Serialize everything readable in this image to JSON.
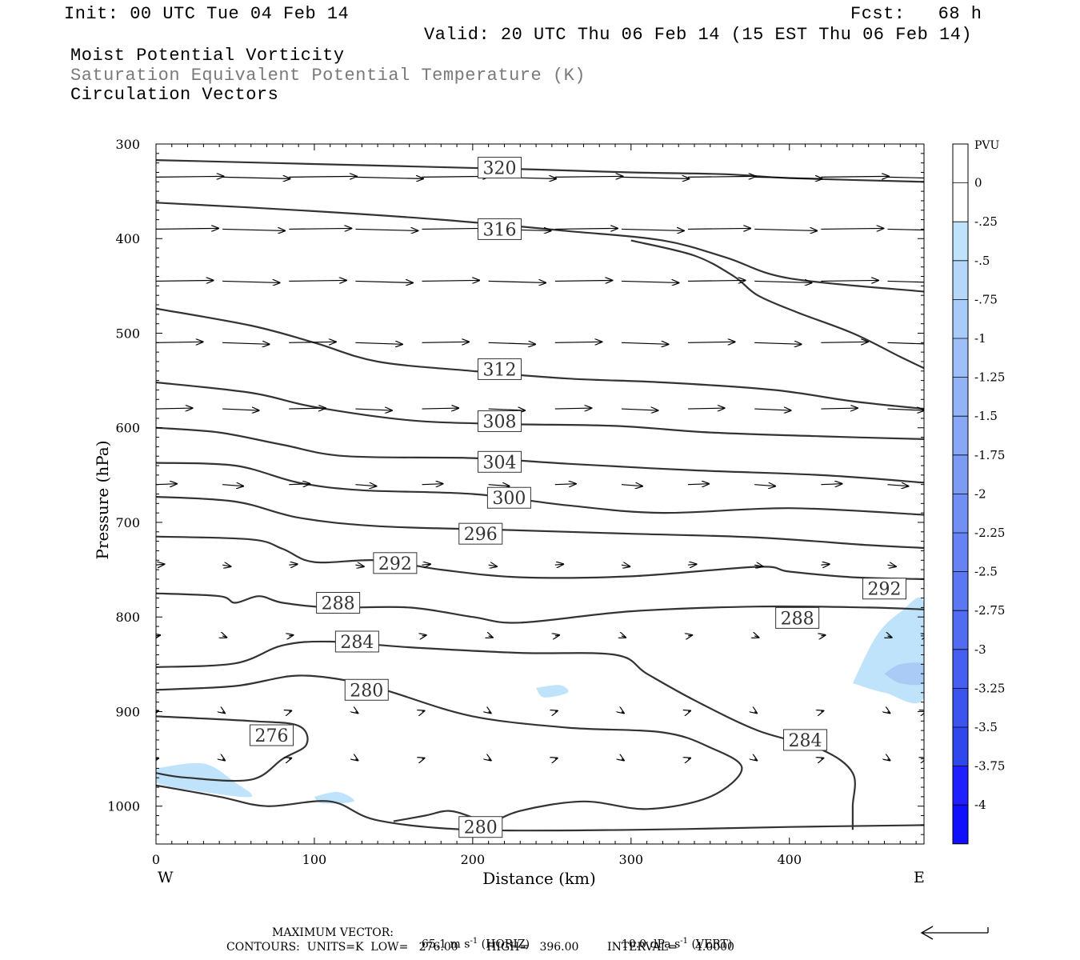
{
  "header": {
    "init": "Init: 00 UTC Tue 04 Feb 14",
    "fcst": "Fcst:   68 h",
    "valid": "Valid: 20 UTC Thu 06 Feb 14 (15 EST Thu 06 Feb 14)",
    "field1": "Moist Potential Vorticity",
    "field2": "Saturation Equivalent Potential Temperature (K)",
    "field3": "Circulation Vectors"
  },
  "colors": {
    "field2": "#7a7a7a",
    "contour": "#333333",
    "axis": "#000000"
  },
  "chart_data": {
    "type": "cross-section",
    "xlabel": "Distance (km)",
    "ylabel": "Pressure (hPa)",
    "xlim": [
      0,
      485
    ],
    "ylim": [
      1040,
      300
    ],
    "x_ticks": [
      0,
      100,
      200,
      300,
      400
    ],
    "y_ticks": [
      300,
      400,
      500,
      600,
      700,
      800,
      900,
      1000
    ],
    "x_end_labels": {
      "west": "W",
      "east": "E"
    },
    "contour_labels": [
      {
        "text": "320",
        "x": 217,
        "p": 325
      },
      {
        "text": "316",
        "x": 217,
        "p": 390
      },
      {
        "text": "312",
        "x": 217,
        "p": 538
      },
      {
        "text": "308",
        "x": 217,
        "p": 593
      },
      {
        "text": "304",
        "x": 217,
        "p": 636
      },
      {
        "text": "300",
        "x": 223,
        "p": 674
      },
      {
        "text": "296",
        "x": 205,
        "p": 712
      },
      {
        "text": "292",
        "x": 151,
        "p": 743
      },
      {
        "text": "292",
        "x": 460,
        "p": 770
      },
      {
        "text": "288",
        "x": 115,
        "p": 785
      },
      {
        "text": "288",
        "x": 405,
        "p": 801
      },
      {
        "text": "284",
        "x": 127,
        "p": 826
      },
      {
        "text": "284",
        "x": 410,
        "p": 930
      },
      {
        "text": "280",
        "x": 133,
        "p": 877
      },
      {
        "text": "280",
        "x": 205,
        "p": 1022
      },
      {
        "text": "276",
        "x": 73,
        "p": 925
      }
    ],
    "theta_e_contours": [
      {
        "value": 320,
        "points": [
          [
            0,
            317
          ],
          [
            120,
            322
          ],
          [
            240,
            327
          ],
          [
            300,
            330
          ],
          [
            360,
            332
          ],
          [
            400,
            336
          ],
          [
            485,
            340
          ]
        ]
      },
      {
        "value": 316,
        "points": [
          [
            0,
            362
          ],
          [
            90,
            370
          ],
          [
            180,
            380
          ],
          [
            260,
            392
          ],
          [
            320,
            402
          ],
          [
            360,
            420
          ],
          [
            400,
            442
          ],
          [
            485,
            456
          ]
        ]
      },
      {
        "value": 316,
        "points": [
          [
            300,
            402
          ],
          [
            340,
            418
          ],
          [
            365,
            440
          ],
          [
            380,
            460
          ],
          [
            405,
            478
          ],
          [
            440,
            500
          ],
          [
            470,
            525
          ],
          [
            485,
            537
          ]
        ]
      },
      {
        "value": 312,
        "points": [
          [
            0,
            474
          ],
          [
            60,
            492
          ],
          [
            100,
            510
          ],
          [
            140,
            530
          ],
          [
            200,
            540
          ],
          [
            260,
            548
          ],
          [
            320,
            552
          ],
          [
            390,
            560
          ],
          [
            440,
            572
          ],
          [
            485,
            580
          ]
        ]
      },
      {
        "value": 308,
        "points": [
          [
            0,
            552
          ],
          [
            60,
            563
          ],
          [
            100,
            578
          ],
          [
            160,
            592
          ],
          [
            220,
            596
          ],
          [
            290,
            598
          ],
          [
            350,
            605
          ],
          [
            420,
            609
          ],
          [
            485,
            612
          ]
        ]
      },
      {
        "value": 304,
        "points": [
          [
            0,
            600
          ],
          [
            40,
            605
          ],
          [
            80,
            618
          ],
          [
            120,
            630
          ],
          [
            200,
            632
          ],
          [
            260,
            638
          ],
          [
            340,
            645
          ],
          [
            420,
            650
          ],
          [
            485,
            658
          ]
        ]
      },
      {
        "value": 300,
        "points": [
          [
            0,
            637
          ],
          [
            50,
            640
          ],
          [
            90,
            658
          ],
          [
            130,
            666
          ],
          [
            200,
            670
          ],
          [
            260,
            682
          ],
          [
            320,
            690
          ],
          [
            400,
            685
          ],
          [
            485,
            692
          ]
        ]
      },
      {
        "value": 296,
        "points": [
          [
            0,
            673
          ],
          [
            50,
            678
          ],
          [
            90,
            695
          ],
          [
            140,
            704
          ],
          [
            220,
            708
          ],
          [
            300,
            712
          ],
          [
            380,
            716
          ],
          [
            450,
            724
          ],
          [
            485,
            727
          ]
        ]
      },
      {
        "value": 292,
        "points": [
          [
            0,
            715
          ],
          [
            60,
            718
          ],
          [
            80,
            728
          ],
          [
            100,
            742
          ],
          [
            140,
            740
          ],
          [
            180,
            750
          ],
          [
            230,
            758
          ],
          [
            300,
            757
          ],
          [
            380,
            747
          ],
          [
            400,
            752
          ],
          [
            440,
            758
          ],
          [
            485,
            760
          ]
        ]
      },
      {
        "value": 288,
        "points": [
          [
            0,
            775
          ],
          [
            40,
            778
          ],
          [
            50,
            785
          ],
          [
            65,
            778
          ],
          [
            80,
            785
          ],
          [
            110,
            790
          ],
          [
            160,
            790
          ],
          [
            200,
            800
          ],
          [
            230,
            806
          ],
          [
            300,
            794
          ],
          [
            380,
            789
          ],
          [
            450,
            790
          ],
          [
            485,
            792
          ]
        ]
      },
      {
        "value": 284,
        "points": [
          [
            0,
            853
          ],
          [
            50,
            849
          ],
          [
            80,
            830
          ],
          [
            110,
            826
          ],
          [
            160,
            832
          ],
          [
            230,
            838
          ],
          [
            290,
            840
          ],
          [
            310,
            860
          ],
          [
            340,
            888
          ],
          [
            380,
            920
          ],
          [
            420,
            940
          ],
          [
            440,
            965
          ],
          [
            440,
            1000
          ],
          [
            440,
            1025
          ]
        ]
      },
      {
        "value": 280,
        "points": [
          [
            0,
            877
          ],
          [
            50,
            873
          ],
          [
            90,
            862
          ],
          [
            130,
            870
          ],
          [
            150,
            880
          ],
          [
            200,
            905
          ],
          [
            260,
            917
          ],
          [
            320,
            922
          ],
          [
            350,
            938
          ],
          [
            370,
            960
          ],
          [
            350,
            990
          ],
          [
            310,
            1003
          ],
          [
            270,
            995
          ],
          [
            230,
            1005
          ],
          [
            210,
            1020
          ]
        ]
      },
      {
        "value": 280,
        "points": [
          [
            150,
            1016
          ],
          [
            170,
            1010
          ],
          [
            185,
            1005
          ],
          [
            200,
            1012
          ],
          [
            210,
            1020
          ]
        ]
      },
      {
        "value": 276,
        "points": [
          [
            0,
            905
          ],
          [
            60,
            910
          ],
          [
            90,
            915
          ],
          [
            95,
            935
          ],
          [
            80,
            950
          ],
          [
            60,
            972
          ],
          [
            20,
            970
          ],
          [
            0,
            965
          ]
        ]
      },
      {
        "value": 280,
        "points": [
          [
            0,
            978
          ],
          [
            40,
            990
          ],
          [
            70,
            1000
          ],
          [
            110,
            995
          ],
          [
            140,
            1015
          ],
          [
            200,
            1025
          ],
          [
            300,
            1025
          ],
          [
            400,
            1022
          ],
          [
            485,
            1020
          ]
        ]
      }
    ],
    "pv_areas": [
      {
        "level": "-0.25 to -0.5",
        "points": [
          [
            440,
            870
          ],
          [
            455,
            820
          ],
          [
            470,
            795
          ],
          [
            485,
            785
          ],
          [
            485,
            885
          ],
          [
            460,
            880
          ]
        ]
      },
      {
        "level": "-0.5 to -0.75",
        "points": [
          [
            460,
            860
          ],
          [
            470,
            850
          ],
          [
            485,
            850
          ],
          [
            485,
            870
          ],
          [
            470,
            870
          ]
        ]
      },
      {
        "level": "-0.25 to -0.5",
        "points": [
          [
            0,
            960
          ],
          [
            30,
            955
          ],
          [
            50,
            975
          ],
          [
            60,
            990
          ],
          [
            30,
            985
          ],
          [
            0,
            975
          ]
        ]
      },
      {
        "level": "-0.25 to -0.5",
        "points": [
          [
            100,
            990
          ],
          [
            115,
            985
          ],
          [
            125,
            995
          ],
          [
            105,
            997
          ]
        ]
      },
      {
        "level": "-0.25 to -0.5",
        "points": [
          [
            240,
            875
          ],
          [
            255,
            872
          ],
          [
            260,
            880
          ],
          [
            245,
            885
          ]
        ]
      }
    ],
    "vector_rows": [
      {
        "p": 335,
        "u": 65,
        "w": 0
      },
      {
        "p": 390,
        "u": 60,
        "w": 0
      },
      {
        "p": 445,
        "u": 55,
        "w": 0
      },
      {
        "p": 510,
        "u": 45,
        "w": 0
      },
      {
        "p": 580,
        "u": 35,
        "w": 0
      },
      {
        "p": 660,
        "u": 20,
        "w": 0
      },
      {
        "p": 745,
        "u": 8,
        "w": 0
      },
      {
        "p": 820,
        "u": 4,
        "w": 0
      },
      {
        "p": 900,
        "u": 2,
        "w": 0
      },
      {
        "p": 950,
        "u": 1,
        "w": 0
      }
    ],
    "colorbar": {
      "unit": "PVU",
      "labels": [
        "0",
        "-.25",
        "-.5",
        "-.75",
        "-1",
        "-1.25",
        "-1.5",
        "-1.75",
        "-2",
        "-2.25",
        "-2.5",
        "-2.75",
        "-3",
        "-3.25",
        "-3.5",
        "-3.75",
        "-4"
      ],
      "colors": [
        "#ffffff",
        "#ffffff",
        "#bfe3fb",
        "#b4d7fa",
        "#a9cbf9",
        "#9ebff8",
        "#93b3f7",
        "#88a7f6",
        "#7d9bf5",
        "#728ff4",
        "#6783f3",
        "#5c77f2",
        "#516bf1",
        "#465ff0",
        "#3b53ef",
        "#3047ee",
        "#1f1fff",
        "#1010ff"
      ]
    }
  },
  "footer": {
    "maxvec_prefix": "MAXIMUM VECTOR:",
    "maxvec_horiz": "65.1 m s",
    "maxvec_horiz_sup": "-1",
    "maxvec_horiz_tail": "(HORIZ)",
    "maxvec_vert": "10.0 dPa s",
    "maxvec_vert_sup": "-1",
    "maxvec_vert_tail": "(VERT)",
    "contours": "CONTOURS:  UNITS=K  LOW=   276.00        HIGH=   396.00        INTERVAL=     4.0000"
  }
}
